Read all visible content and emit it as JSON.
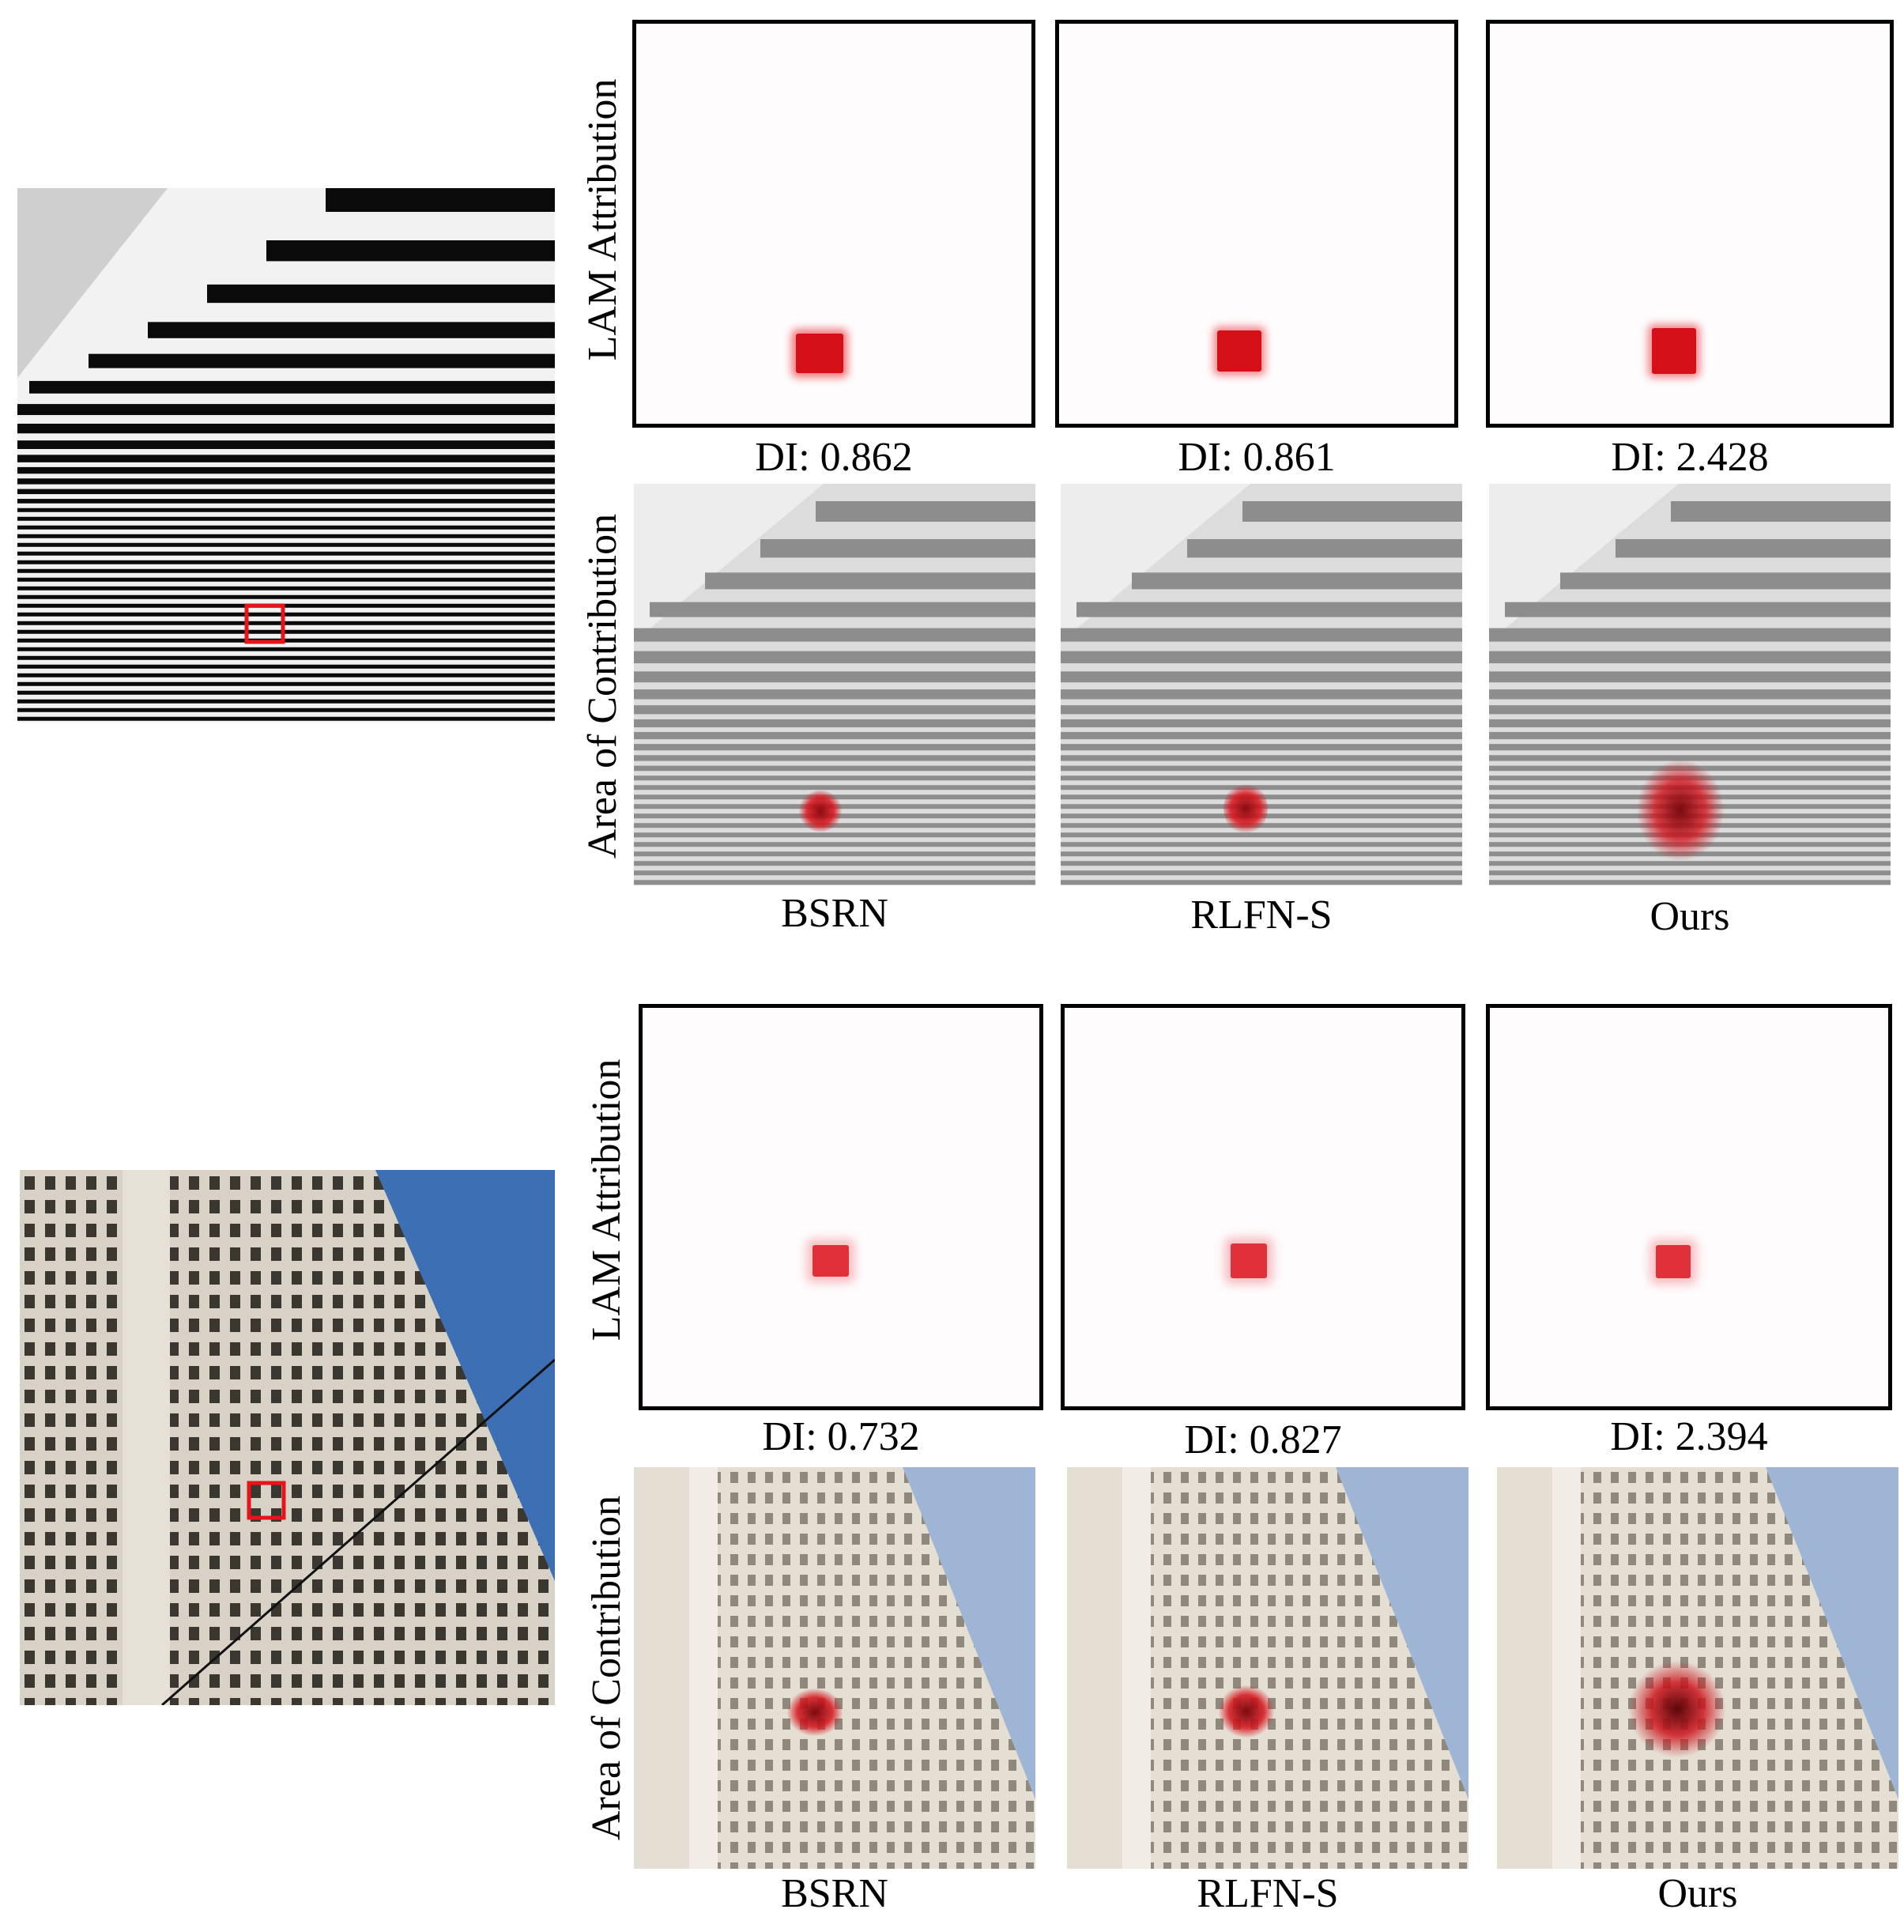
{
  "rows": [
    {
      "row_label_top": "LAM Attribution",
      "row_label_bottom": "Area of Contribution",
      "methods": [
        {
          "name": "BSRN",
          "di": "DI: 0.862"
        },
        {
          "name": "RLFN-S",
          "di": "DI: 0.861"
        },
        {
          "name": "Ours",
          "di": "DI: 2.428"
        }
      ]
    },
    {
      "row_label_top": "LAM Attribution",
      "row_label_bottom": "Area of Contribution",
      "methods": [
        {
          "name": "BSRN",
          "di": "DI: 0.732"
        },
        {
          "name": "RLFN-S",
          "di": "DI: 0.827"
        },
        {
          "name": "Ours",
          "di": "DI: 2.394"
        }
      ]
    }
  ],
  "colors": {
    "highlight": "#e8141c",
    "sky": "#3d6fb4",
    "facade": "#d8d2c6"
  }
}
